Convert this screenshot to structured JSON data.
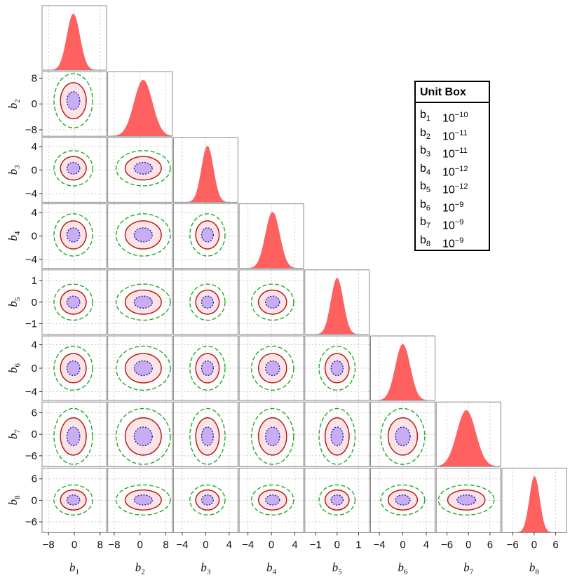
{
  "chart_data": {
    "type": "corner",
    "params": [
      "b1",
      "b2",
      "b3",
      "b4",
      "b5",
      "b6",
      "b7",
      "b8"
    ],
    "axis_labels": [
      {
        "base": "b",
        "sub": "1"
      },
      {
        "base": "b",
        "sub": "2"
      },
      {
        "base": "b",
        "sub": "3"
      },
      {
        "base": "b",
        "sub": "4"
      },
      {
        "base": "b",
        "sub": "5"
      },
      {
        "base": "b",
        "sub": "6"
      },
      {
        "base": "b",
        "sub": "7"
      },
      {
        "base": "b",
        "sub": "8"
      }
    ],
    "ranges": [
      [
        -10,
        10
      ],
      [
        -10,
        10
      ],
      [
        -5.5,
        5.5
      ],
      [
        -5.5,
        5.5
      ],
      [
        -1.5,
        1.5
      ],
      [
        -5.5,
        5.5
      ],
      [
        -9,
        9
      ],
      [
        -9,
        9
      ]
    ],
    "x_ticks": [
      [
        -8,
        0,
        8
      ],
      [
        -8,
        0,
        8
      ],
      [
        -4,
        0,
        4
      ],
      [
        -4,
        0,
        4
      ],
      [
        -1,
        0,
        1
      ],
      [
        -4,
        0,
        4
      ],
      [
        -6,
        0,
        6
      ],
      [
        -6,
        0,
        6
      ]
    ],
    "y_ticks": [
      [],
      [
        -8,
        0,
        8
      ],
      [
        -4,
        0,
        4
      ],
      [
        -4,
        0,
        4
      ],
      [
        -1,
        0,
        1
      ],
      [
        -4,
        0,
        4
      ],
      [
        -6,
        0,
        6
      ],
      [
        -6,
        0,
        6
      ]
    ],
    "means": [
      -0.3,
      1.0,
      0.3,
      0.2,
      0.0,
      0.0,
      -0.6,
      0.1
    ],
    "sigmas": [
      2.0,
      2.8,
      1.0,
      1.2,
      0.28,
      1.25,
      2.6,
      1.4
    ],
    "contour_levels": [
      "1-sigma",
      "2-sigma",
      "3-sigma"
    ],
    "colors": {
      "histogram": "#ff6060",
      "sigma1_fill": "#c8aef0",
      "sigma1_line": "#1a1acc",
      "sigma2_fill": "#fde4e4",
      "sigma2_line": "#b81c1c",
      "sigma3_line": "#22aa22",
      "grid": "#c8c8c8",
      "frame": "#888888"
    },
    "grid": true
  },
  "unit_box": {
    "title": "Unit Box",
    "rows": [
      {
        "name": "b",
        "sub": "1",
        "base": "10",
        "exp": "−10"
      },
      {
        "name": "b",
        "sub": "2",
        "base": "10",
        "exp": "−11"
      },
      {
        "name": "b",
        "sub": "3",
        "base": "10",
        "exp": "−11"
      },
      {
        "name": "b",
        "sub": "4",
        "base": "10",
        "exp": "−12"
      },
      {
        "name": "b",
        "sub": "5",
        "base": "10",
        "exp": "−12"
      },
      {
        "name": "b",
        "sub": "6",
        "base": "10",
        "exp": "−9"
      },
      {
        "name": "b",
        "sub": "7",
        "base": "10",
        "exp": "−9"
      },
      {
        "name": "b",
        "sub": "8",
        "base": "10",
        "exp": "−9"
      }
    ]
  }
}
